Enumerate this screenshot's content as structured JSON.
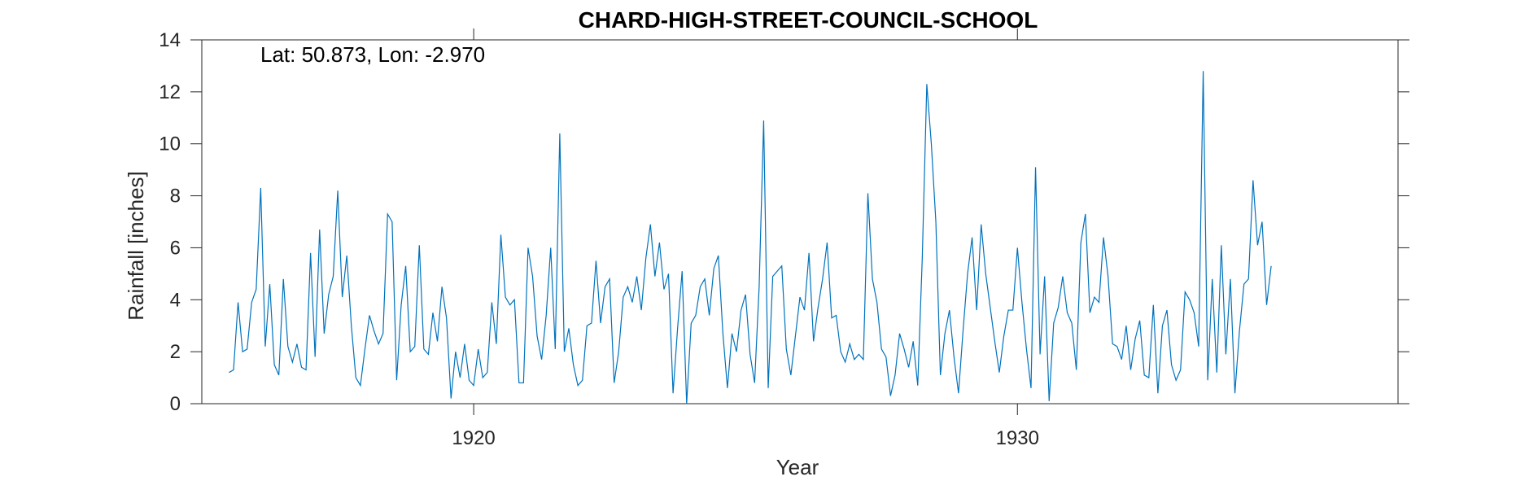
{
  "chart_data": {
    "type": "line",
    "title": "CHARD-HIGH-STREET-COUNCIL-SCHOOL",
    "annotation": "Lat: 50.873, Lon: -2.970",
    "xlabel": "Year",
    "ylabel": "Rainfall [inches]",
    "xlim": [
      1915.0,
      1937.0
    ],
    "ylim": [
      0,
      14
    ],
    "xticks": [
      1920,
      1930
    ],
    "yticks": [
      0,
      2,
      4,
      6,
      8,
      10,
      12,
      14
    ],
    "grid": false,
    "line_color": "#0072BD",
    "series": [
      {
        "x_start": 1915.5,
        "x_step": 0.0833333,
        "values": [
          1.2,
          1.3,
          3.9,
          2.0,
          2.1,
          3.9,
          4.4,
          8.3,
          2.2,
          4.6,
          1.5,
          1.1,
          4.8,
          2.2,
          1.6,
          2.3,
          1.4,
          1.3,
          5.8,
          1.8,
          6.7,
          2.7,
          4.2,
          4.9,
          8.2,
          4.1,
          5.7,
          3.0,
          1.0,
          0.7,
          2.1,
          3.4,
          2.8,
          2.3,
          2.7,
          7.3,
          7.0,
          0.9,
          3.8,
          5.3,
          2.0,
          2.2,
          6.1,
          2.1,
          1.9,
          3.5,
          2.4,
          4.5,
          3.3,
          0.2,
          2.0,
          1.0,
          2.3,
          0.9,
          0.7,
          2.1,
          1.0,
          1.2,
          3.9,
          2.3,
          6.5,
          4.1,
          3.8,
          4.0,
          0.8,
          0.8,
          6.0,
          4.9,
          2.6,
          1.7,
          3.4,
          6.0,
          2.1,
          10.4,
          2.0,
          2.9,
          1.5,
          0.7,
          0.9,
          3.0,
          3.1,
          5.5,
          3.1,
          4.5,
          4.8,
          0.8,
          2.0,
          4.1,
          4.5,
          3.9,
          4.9,
          3.6,
          5.6,
          6.9,
          4.9,
          6.2,
          4.4,
          5.0,
          0.4,
          2.9,
          5.1,
          0.0,
          3.1,
          3.4,
          4.5,
          4.8,
          3.4,
          5.2,
          5.7,
          2.7,
          0.6,
          2.7,
          2.0,
          3.6,
          4.2,
          1.9,
          0.8,
          4.5,
          10.9,
          0.6,
          4.9,
          5.1,
          5.3,
          2.1,
          1.1,
          2.6,
          4.1,
          3.6,
          5.8,
          2.4,
          3.7,
          4.8,
          6.2,
          3.3,
          3.4,
          2.0,
          1.6,
          2.3,
          1.7,
          1.9,
          1.7,
          8.1,
          4.8,
          3.9,
          2.1,
          1.8,
          0.3,
          1.1,
          2.7,
          2.1,
          1.4,
          2.4,
          0.7,
          5.6,
          12.3,
          10.0,
          7.0,
          1.1,
          2.7,
          3.6,
          1.8,
          0.4,
          2.8,
          5.0,
          6.4,
          3.6,
          6.9,
          5.0,
          3.7,
          2.4,
          1.2,
          2.6,
          3.6,
          3.6,
          6.0,
          3.9,
          2.1,
          0.6,
          9.1,
          1.9,
          4.9,
          0.1,
          3.1,
          3.7,
          4.9,
          3.5,
          3.1,
          1.3,
          6.2,
          7.3,
          3.5,
          4.1,
          3.9,
          6.4,
          4.9,
          2.3,
          2.2,
          1.7,
          3.0,
          1.3,
          2.5,
          3.2,
          1.1,
          1.0,
          3.8,
          0.4,
          3.0,
          3.6,
          1.5,
          0.9,
          1.3,
          4.3,
          4.0,
          3.5,
          2.2,
          12.8,
          0.9,
          4.8,
          1.2,
          6.1,
          1.9,
          4.8,
          0.4,
          2.8,
          4.6,
          4.8,
          8.6,
          6.1,
          7.0,
          3.8,
          5.3
        ]
      }
    ]
  }
}
